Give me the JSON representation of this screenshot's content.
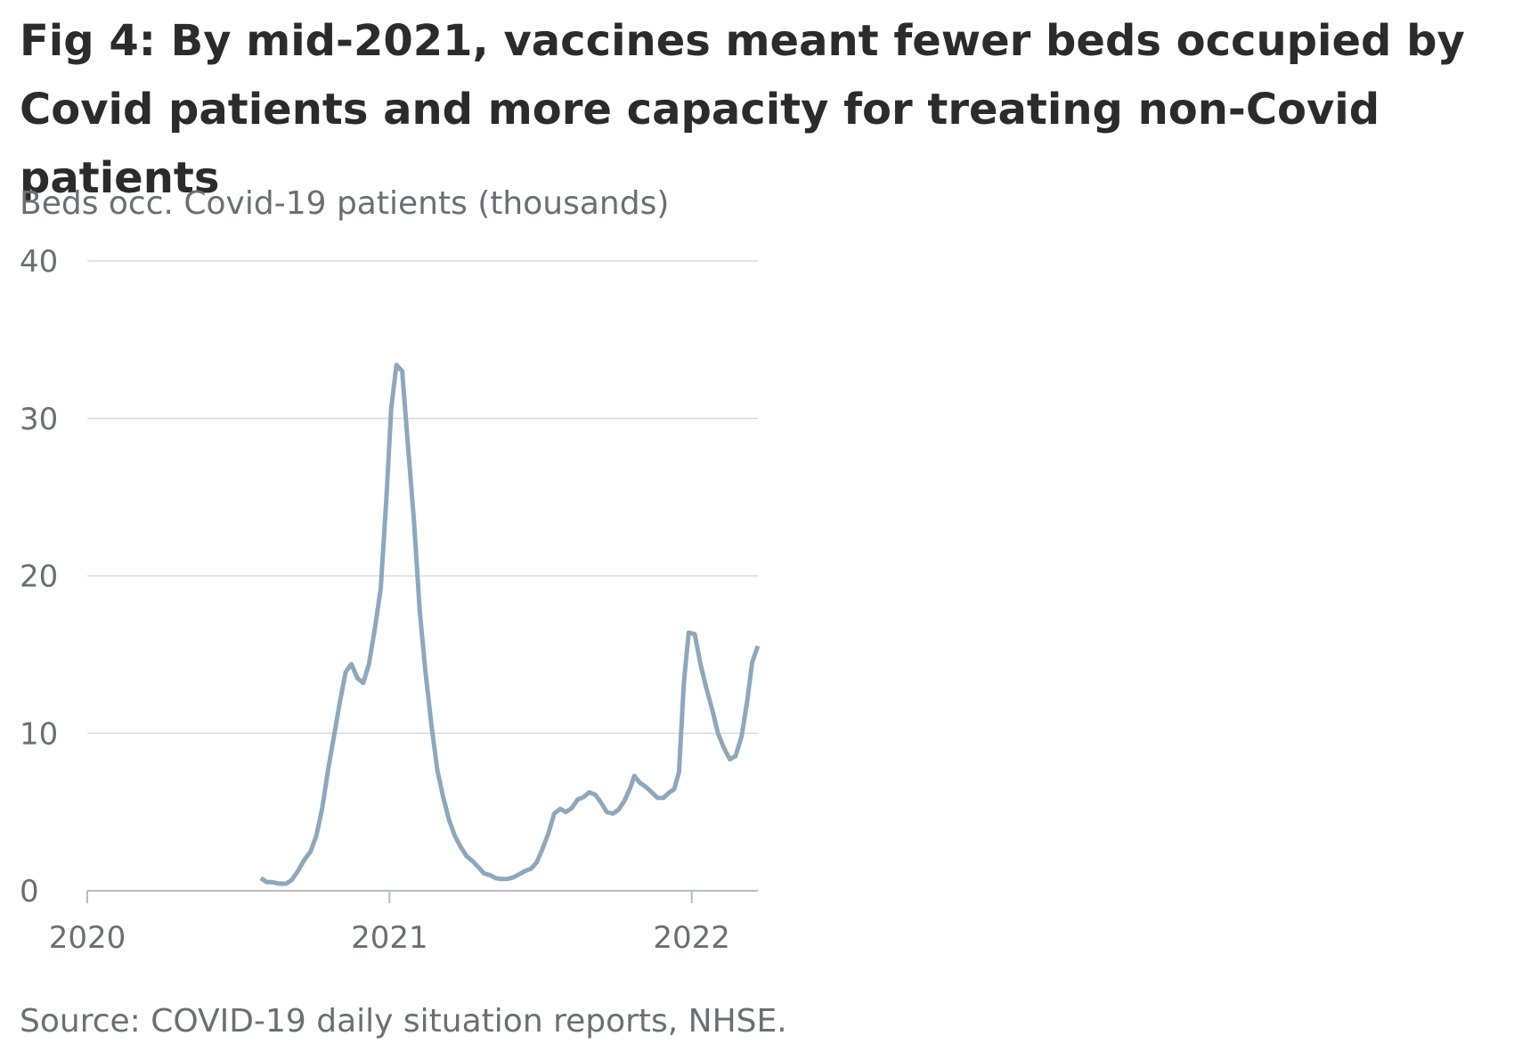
{
  "chart_data": {
    "type": "line",
    "title": "Fig 4: By mid-2021, vaccines meant fewer beds occupied by Covid patients and more capacity for treating non-Covid patients",
    "y_label": "Beds occ. Covid-19 patients (thousands)",
    "source": "Source: COVID-19 daily situation reports, NHSE.",
    "x": [
      2020.574,
      2020.594,
      2020.613,
      2020.635,
      2020.658,
      2020.677,
      2020.697,
      2020.716,
      2020.739,
      2020.758,
      2020.777,
      2020.797,
      2020.816,
      2020.835,
      2020.855,
      2020.874,
      2020.894,
      2020.913,
      2020.932,
      2020.952,
      2020.971,
      2020.99,
      2021.006,
      2021.023,
      2021.042,
      2021.061,
      2021.081,
      2021.1,
      2021.119,
      2021.139,
      2021.158,
      2021.177,
      2021.197,
      2021.216,
      2021.235,
      2021.255,
      2021.274,
      2021.294,
      2021.313,
      2021.332,
      2021.352,
      2021.371,
      2021.39,
      2021.41,
      2021.429,
      2021.448,
      2021.468,
      2021.487,
      2021.506,
      2021.526,
      2021.545,
      2021.565,
      2021.584,
      2021.603,
      2021.623,
      2021.642,
      2021.661,
      2021.681,
      2021.7,
      2021.719,
      2021.739,
      2021.758,
      2021.777,
      2021.797,
      2021.81,
      2021.829,
      2021.848,
      2021.868,
      2021.887,
      2021.906,
      2021.926,
      2021.942,
      2021.958,
      2021.974,
      2021.99,
      2022.01,
      2022.029,
      2022.048,
      2022.068,
      2022.087,
      2022.106,
      2022.126,
      2022.145,
      2022.165,
      2022.184,
      2022.2,
      2022.219
    ],
    "series": [
      {
        "name": "Beds occupied by Covid-19 patients",
        "color": "#8ea7bb",
        "values": [
          0.8,
          0.55,
          0.55,
          0.45,
          0.45,
          0.7,
          1.25,
          1.9,
          2.5,
          3.5,
          5.2,
          7.7,
          9.8,
          11.9,
          13.9,
          14.4,
          13.5,
          13.2,
          14.4,
          16.7,
          19.2,
          25,
          30.7,
          33.4,
          33,
          28.3,
          23.5,
          17.8,
          13.9,
          10.5,
          7.7,
          6,
          4.5,
          3.5,
          2.8,
          2.2,
          1.9,
          1.5,
          1.1,
          1.0,
          0.8,
          0.75,
          0.75,
          0.85,
          1.05,
          1.25,
          1.4,
          1.8,
          2.65,
          3.65,
          4.9,
          5.2,
          5,
          5.25,
          5.8,
          5.95,
          6.25,
          6.1,
          5.6,
          5,
          4.9,
          5.15,
          5.7,
          6.55,
          7.3,
          6.85,
          6.6,
          6.25,
          5.9,
          5.9,
          6.25,
          6.45,
          7.55,
          13.2,
          16.4,
          16.3,
          14.4,
          12.9,
          11.5,
          10,
          9.1,
          8.35,
          8.55,
          9.8,
          12.1,
          14.5,
          15.55
        ]
      }
    ],
    "xlim": [
      2020,
      2022.219
    ],
    "xticks": [
      2020,
      2021,
      2022
    ],
    "ylim": [
      0,
      40
    ],
    "yticks": [
      0,
      10,
      20,
      30,
      40
    ],
    "grid": true
  }
}
